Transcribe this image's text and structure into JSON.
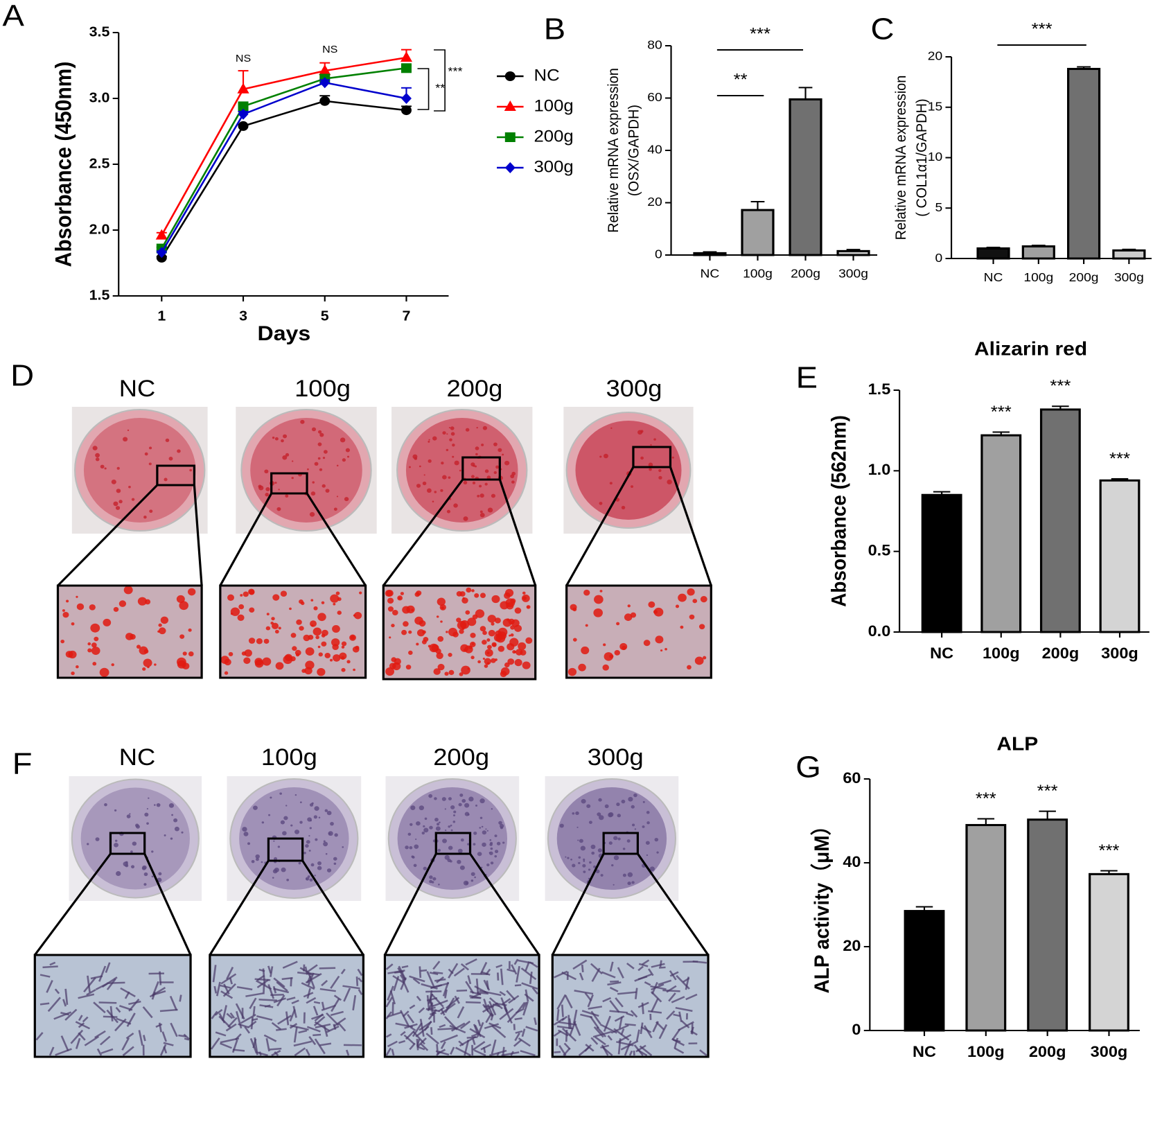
{
  "chart_data": [
    {
      "panel": "A",
      "type": "line",
      "xlabel": "Days",
      "ylabel": "Absorbance (450nm)",
      "x": [
        1,
        3,
        5,
        7
      ],
      "xlim": [
        0,
        8
      ],
      "xticks": [
        1,
        3,
        5,
        7
      ],
      "ylim": [
        1.5,
        3.5
      ],
      "yticks": [
        1.5,
        {
          "value": 2,
          "label": "2.0"
        },
        2.5,
        {
          "value": 3,
          "label": "3.0"
        },
        3.5
      ],
      "series": [
        {
          "name": "NC",
          "color": "#000000",
          "marker": "circle",
          "values": [
            1.79,
            2.79,
            2.98,
            2.91
          ],
          "errors": [
            0.01,
            0.01,
            0.04,
            0.03
          ]
        },
        {
          "name": "100g",
          "color": "#ff0000",
          "marker": "triangle",
          "values": [
            1.96,
            3.07,
            3.21,
            3.31
          ],
          "errors": [
            0.02,
            0.14,
            0.06,
            0.06
          ]
        },
        {
          "name": "200g",
          "color": "#008000",
          "marker": "square",
          "values": [
            1.86,
            2.94,
            3.15,
            3.23
          ],
          "errors": [
            0.01,
            0.02,
            0.03,
            0.02
          ]
        },
        {
          "name": "300g",
          "color": "#0000cc",
          "marker": "diamond",
          "values": [
            1.83,
            2.88,
            3.12,
            3.0
          ],
          "errors": [
            0.01,
            0.02,
            0.02,
            0.08
          ]
        }
      ],
      "annotations": [
        "NS",
        "NS",
        "**",
        "***"
      ]
    },
    {
      "panel": "B",
      "type": "bar",
      "ylabel": [
        "Relative mRNA expression",
        "(OSX/GAPDH)"
      ],
      "categories": [
        "NC",
        "100g",
        "200g",
        "300g"
      ],
      "values": [
        0.7,
        17.2,
        59.5,
        1.5
      ],
      "errors": [
        0.5,
        3.2,
        4.5,
        0.6
      ],
      "colors": [
        "#111111",
        "#a0a0a0",
        "#707070",
        "#cccccc"
      ],
      "ylim": [
        0,
        80
      ],
      "yticks": [
        0,
        20,
        40,
        60,
        80
      ],
      "annotations": [
        "***",
        "**"
      ]
    },
    {
      "panel": "C",
      "type": "bar",
      "ylabel": [
        "Relative mRNA expression",
        "( COL1α1/GAPDH)"
      ],
      "categories": [
        "NC",
        "100g",
        "200g",
        "300g"
      ],
      "values": [
        1.0,
        1.2,
        18.8,
        0.8
      ],
      "errors": [
        0.1,
        0.1,
        0.2,
        0.1
      ],
      "colors": [
        "#111111",
        "#a0a0a0",
        "#707070",
        "#cccccc"
      ],
      "ylim": [
        0,
        20
      ],
      "yticks": [
        0,
        5,
        10,
        15,
        20
      ],
      "annotations": [
        "***"
      ]
    },
    {
      "panel": "E",
      "type": "bar",
      "title": "Alizarin red",
      "ylabel": [
        "Absorbance (562nm)"
      ],
      "categories": [
        "NC",
        "100g",
        "200g",
        "300g"
      ],
      "values": [
        0.85,
        1.22,
        1.38,
        0.94
      ],
      "errors": [
        0.02,
        0.02,
        0.02,
        0.01
      ],
      "colors": [
        "#000000",
        "#a0a0a0",
        "#707070",
        "#d4d4d4"
      ],
      "significance": [
        null,
        "***",
        "***",
        "***"
      ],
      "ylim": [
        0,
        1.5
      ],
      "yticks": [
        {
          "value": 0,
          "label": "0.0"
        },
        0.5,
        {
          "value": 1,
          "label": "1.0"
        },
        1.5
      ]
    },
    {
      "panel": "G",
      "type": "bar",
      "title": "ALP",
      "ylabel": [
        "ALP activity（μM）"
      ],
      "categories": [
        "NC",
        "100g",
        "200g",
        "300g"
      ],
      "values": [
        28.5,
        49,
        50.3,
        37.3
      ],
      "errors": [
        1,
        1.5,
        2,
        0.8
      ],
      "colors": [
        "#000000",
        "#a0a0a0",
        "#707070",
        "#d4d4d4"
      ],
      "significance": [
        null,
        "***",
        "***",
        "***"
      ],
      "ylim": [
        0,
        60
      ],
      "yticks": [
        0,
        20,
        40,
        60
      ]
    }
  ],
  "figures": [
    {
      "panel": "D",
      "labels": [
        "NC",
        "100g",
        "200g",
        "300g"
      ]
    },
    {
      "panel": "F",
      "labels": [
        "NC",
        "100g",
        "200g",
        "300g"
      ]
    }
  ]
}
